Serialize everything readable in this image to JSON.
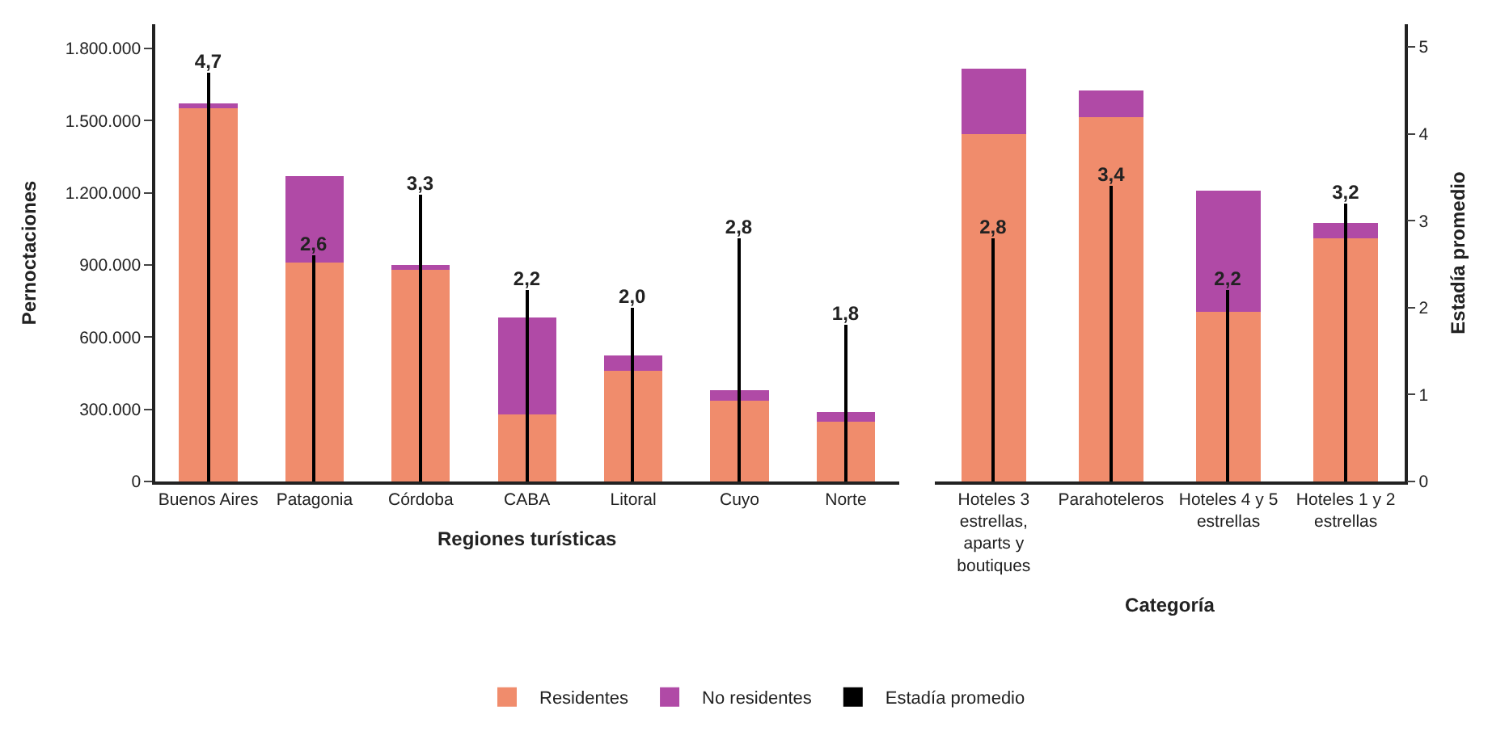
{
  "chart_data": [
    {
      "type": "bar",
      "stacked": true,
      "xlabel": "Regiones turísticas",
      "ylabel": "Pernoctaciones",
      "categories": [
        "Buenos Aires",
        "Patagonia",
        "Córdoba",
        "CABA",
        "Litoral",
        "Cuyo",
        "Norte"
      ],
      "series": [
        {
          "name": "Residentes",
          "color": "#f08c6c",
          "values": [
            1550000,
            910000,
            880000,
            280000,
            460000,
            335000,
            250000
          ]
        },
        {
          "name": "No residentes",
          "color": "#b04aa6",
          "values": [
            20000,
            360000,
            20000,
            400000,
            65000,
            45000,
            40000
          ]
        },
        {
          "name": "Estadía promedio",
          "type": "bar",
          "axis": "y2",
          "color": "#000000",
          "values": [
            4.7,
            2.6,
            3.3,
            2.2,
            2.0,
            2.8,
            1.8
          ],
          "value_labels": [
            "4,7",
            "2,6",
            "3,3",
            "2,2",
            "2,0",
            "2,8",
            "1,8"
          ]
        }
      ],
      "ylim": [
        0,
        1900000
      ],
      "yticks": [
        0,
        {
          "value": 300000,
          "label": "300.000"
        },
        {
          "value": 600000,
          "label": "600.000"
        },
        {
          "value": 900000,
          "label": "900.000"
        },
        {
          "value": 1200000,
          "label": "1.200.000"
        },
        {
          "value": 1500000,
          "label": "1.500.000"
        },
        {
          "value": 1800000,
          "label": "1.800.000"
        }
      ],
      "y2lim": [
        0,
        5.26
      ],
      "tick_labels": [
        "x",
        "y"
      ],
      "legend": "bottom"
    },
    {
      "type": "bar",
      "stacked": true,
      "xlabel": "Categoría",
      "y2label": "Estadía promedio",
      "categories": [
        "Hoteles 3 estrellas, aparts y boutiques",
        "Parahoteleros",
        "Hoteles 4 y 5 estrellas",
        "Hoteles 1 y 2 estrellas"
      ],
      "series": [
        {
          "name": "Residentes",
          "color": "#f08c6c",
          "values": [
            1445000,
            1515000,
            705000,
            1010000
          ]
        },
        {
          "name": "No residentes",
          "color": "#b04aa6",
          "values": [
            270000,
            110000,
            505000,
            65000
          ]
        },
        {
          "type": "bar",
          "axis": "y2",
          "color": "#000000",
          "values": [
            2.8,
            3.4,
            2.2,
            3.2
          ],
          "value_labels": [
            "2,8",
            "3,4",
            "2,2",
            "3,2"
          ]
        }
      ],
      "ylim": [
        0,
        1900000
      ],
      "y2lim": [
        0,
        5.26
      ],
      "y2ticks": [
        0,
        1,
        2,
        3,
        4,
        5
      ],
      "tick_labels": [
        "x",
        "y2"
      ],
      "legend": false
    }
  ]
}
